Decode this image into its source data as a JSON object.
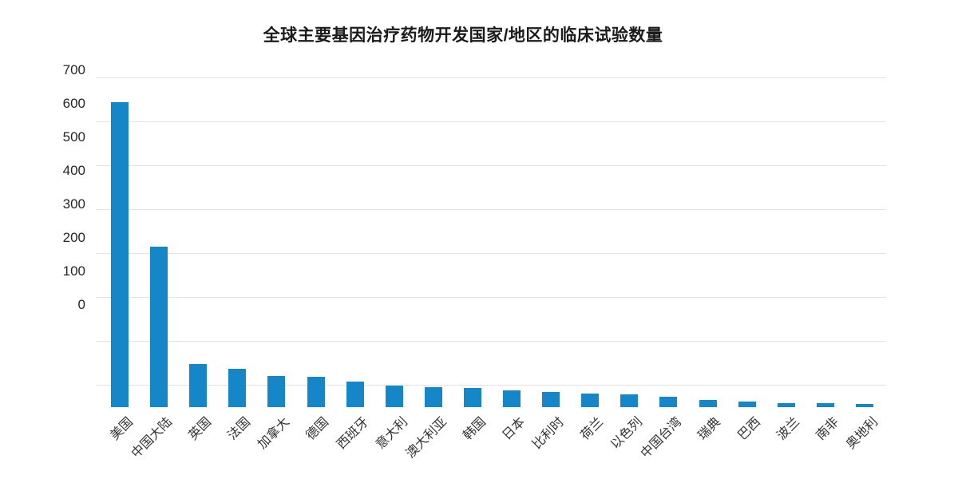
{
  "page": {
    "background": "#ffffff"
  },
  "chart_data": {
    "type": "bar",
    "title": "全球主要基因治疗药物开发国家/地区的临床试验数量",
    "categories": [
      "美国",
      "中国大陆",
      "英国",
      "法国",
      "加拿大",
      "德国",
      "西班牙",
      "意大利",
      "澳大利亚",
      "韩国",
      "日本",
      "比利时",
      "荷兰",
      "以色列",
      "中国台湾",
      "瑞典",
      "巴西",
      "波兰",
      "南非",
      "奥地利"
    ],
    "values": [
      600,
      315,
      85,
      75,
      62,
      60,
      50,
      42,
      40,
      38,
      33,
      30,
      27,
      25,
      20,
      14,
      11,
      8,
      8,
      6
    ],
    "xlabel": "",
    "ylabel": "",
    "ylim": [
      0,
      700
    ],
    "yticks": [
      700,
      600,
      500,
      400,
      300,
      200,
      100,
      0
    ],
    "grid": true,
    "legend": "none",
    "bar_color": "#1587c9",
    "gridline_color": "#e3e3e3"
  }
}
